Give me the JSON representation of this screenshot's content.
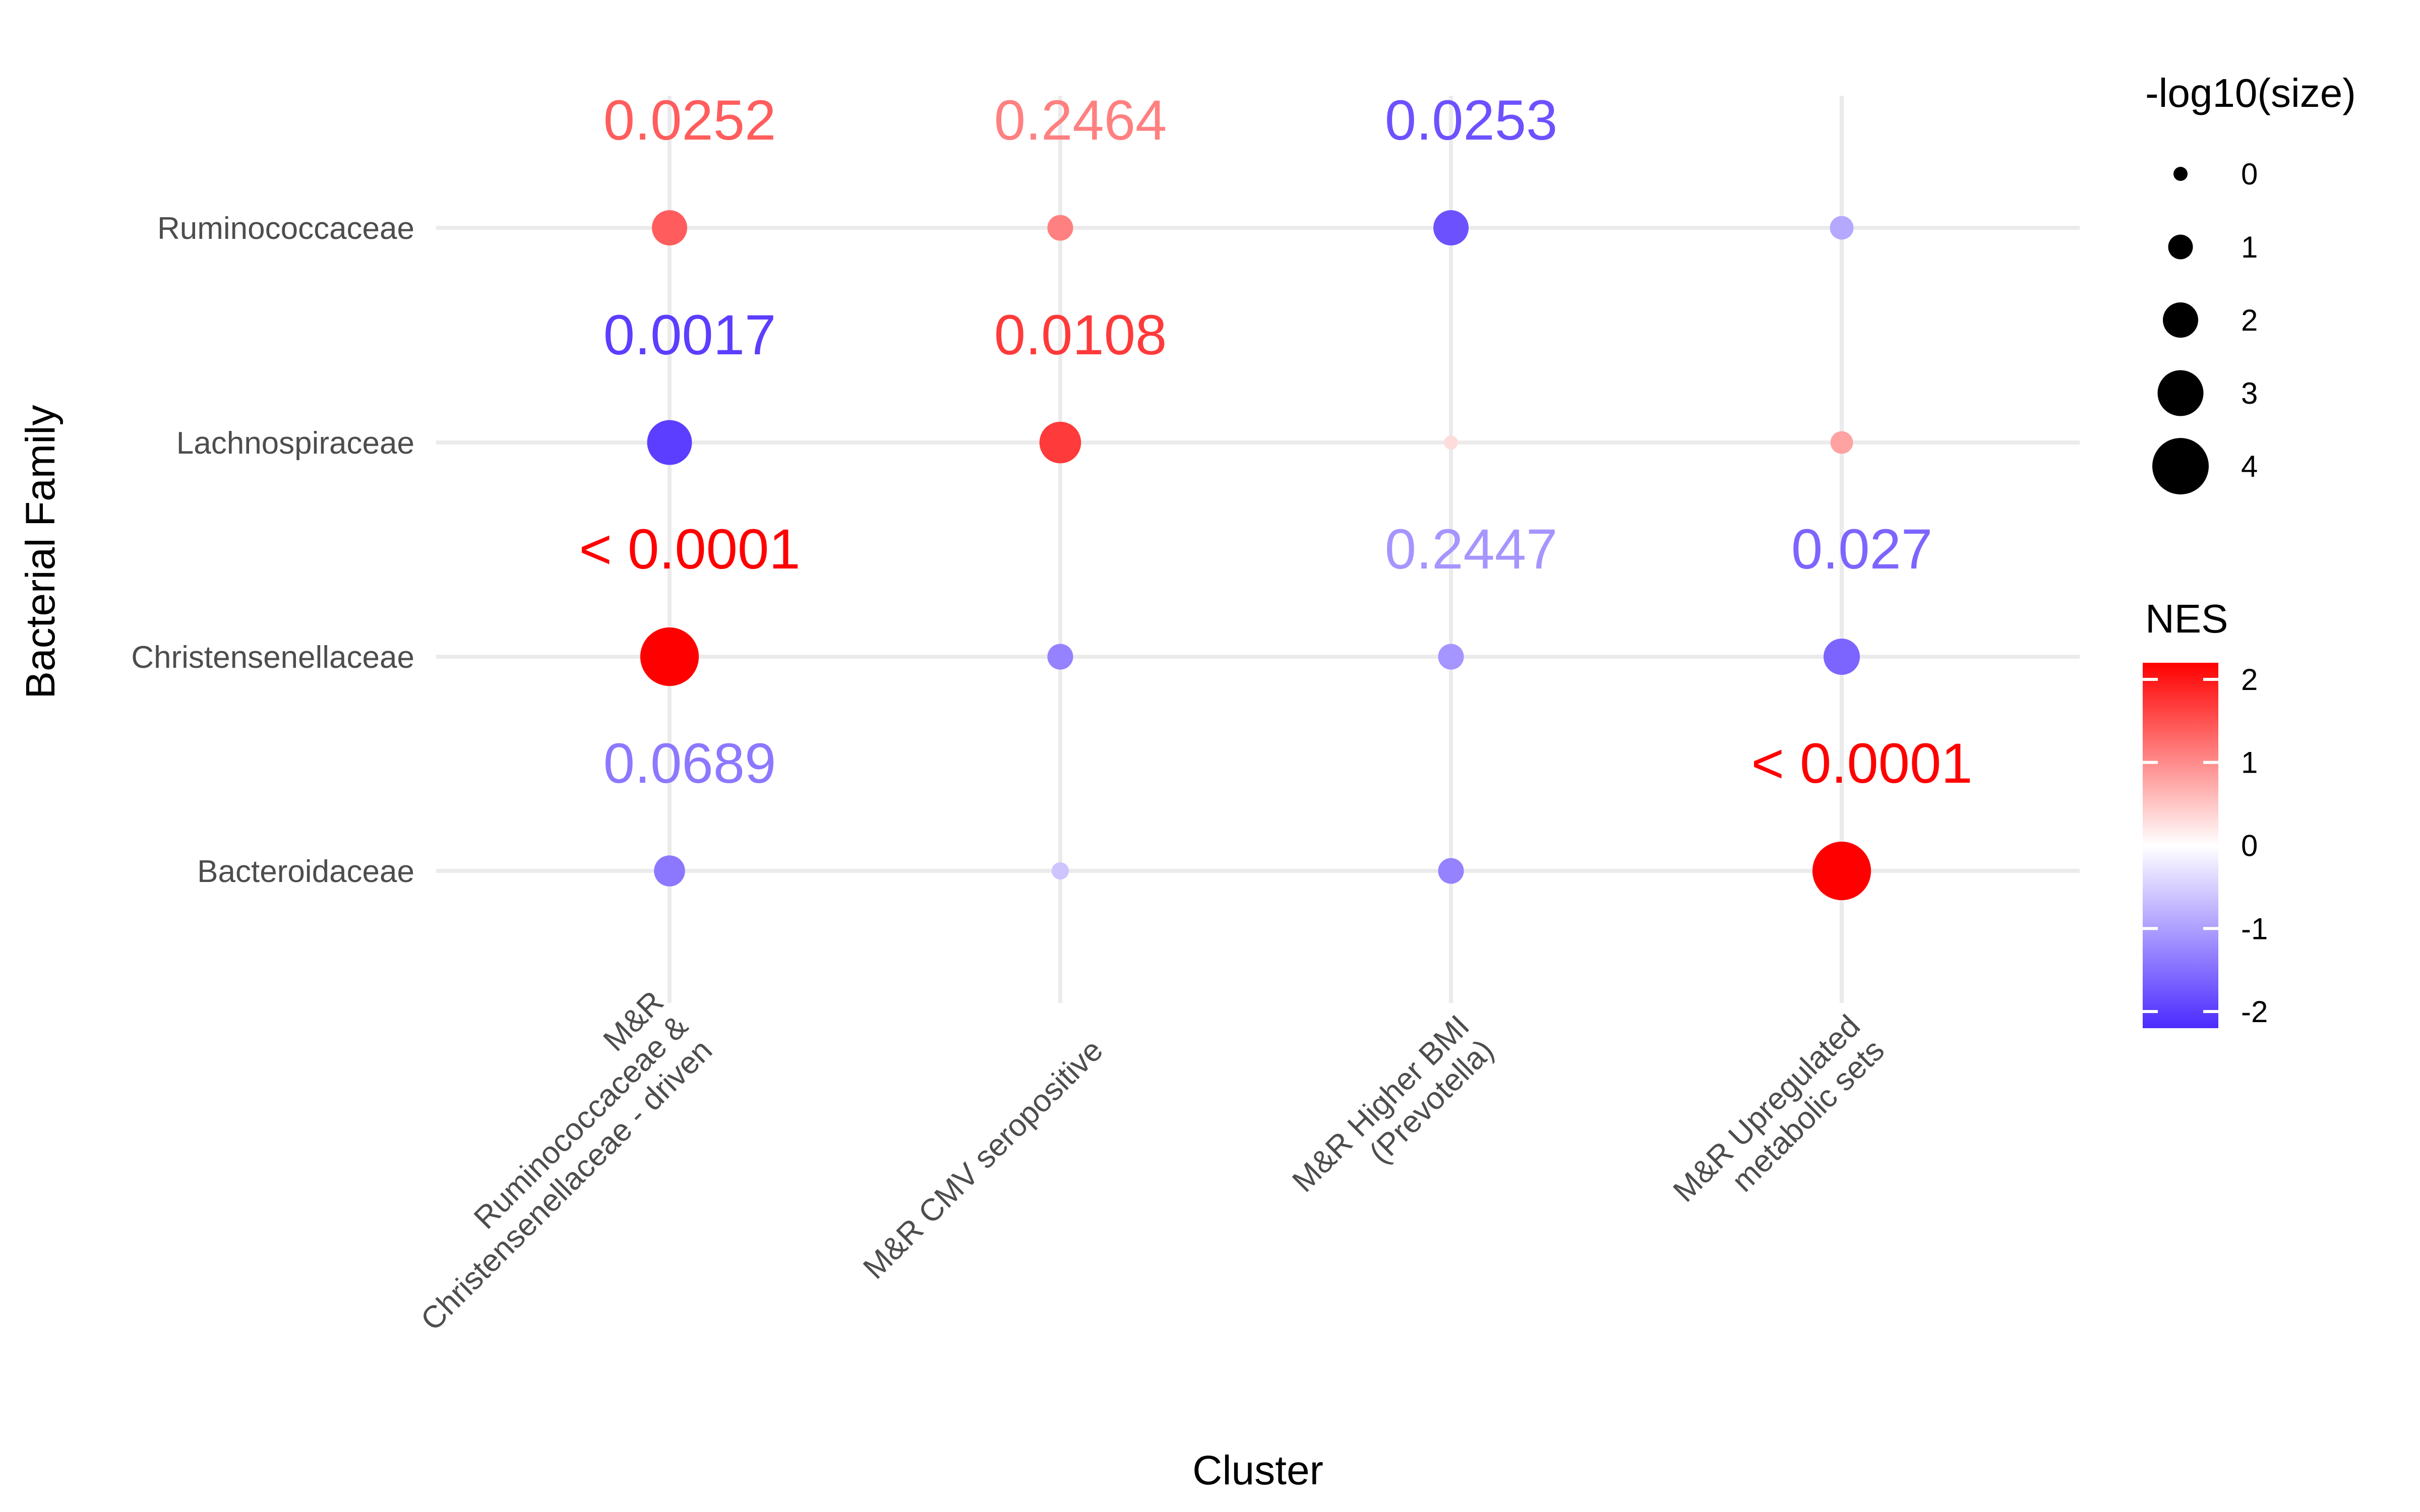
{
  "chart_data": {
    "type": "scatter",
    "xlabel": "Cluster",
    "ylabel": "Bacterial Family",
    "x_categories": [
      [
        "M&R",
        "Ruminococcaceae &",
        "Christensenellaceae - driven"
      ],
      [
        "M&R CMV seropositive"
      ],
      [
        "M&R Higher BMI",
        "(Prevotella)"
      ],
      [
        "M&R Upregulated",
        "metabolic sets"
      ]
    ],
    "y_categories": [
      "Ruminococcaceae",
      "Lachnospiraceae",
      "Christensenellaceae",
      "Bacteroidaceae"
    ],
    "points": [
      {
        "x": 0,
        "y": "Ruminococcaceae",
        "nes": 1.4,
        "size": 2.0,
        "label": "0.0252"
      },
      {
        "x": 1,
        "y": "Ruminococcaceae",
        "nes": 1.1,
        "size": 1.1,
        "label": "0.2464"
      },
      {
        "x": 2,
        "y": "Ruminococcaceae",
        "nes": -1.8,
        "size": 2.0,
        "label": "0.0253"
      },
      {
        "x": 3,
        "y": "Ruminococcaceae",
        "nes": -0.9,
        "size": 0.9,
        "label": ""
      },
      {
        "x": 0,
        "y": "Lachnospiraceae",
        "nes": -2.0,
        "size": 2.9,
        "label": "0.0017"
      },
      {
        "x": 1,
        "y": "Lachnospiraceae",
        "nes": 1.7,
        "size": 2.6,
        "label": "0.0108"
      },
      {
        "x": 2,
        "y": "Lachnospiraceae",
        "nes": 0.3,
        "size": 0.0,
        "label": ""
      },
      {
        "x": 3,
        "y": "Lachnospiraceae",
        "nes": 0.8,
        "size": 0.8,
        "label": ""
      },
      {
        "x": 0,
        "y": "Christensenellaceae",
        "nes": 2.2,
        "size": 4.2,
        "label": "< 0.0001"
      },
      {
        "x": 1,
        "y": "Christensenellaceae",
        "nes": -1.3,
        "size": 1.1,
        "label": ""
      },
      {
        "x": 2,
        "y": "Christensenellaceae",
        "nes": -1.1,
        "size": 1.1,
        "label": "0.2447"
      },
      {
        "x": 3,
        "y": "Christensenellaceae",
        "nes": -1.6,
        "size": 2.1,
        "label": "0.027"
      },
      {
        "x": 0,
        "y": "Bacteroidaceae",
        "nes": -1.4,
        "size": 1.6,
        "label": "0.0689"
      },
      {
        "x": 1,
        "y": "Bacteroidaceae",
        "nes": -0.6,
        "size": 0.3,
        "label": ""
      },
      {
        "x": 2,
        "y": "Bacteroidaceae",
        "nes": -1.3,
        "size": 1.1,
        "label": ""
      },
      {
        "x": 3,
        "y": "Bacteroidaceae",
        "nes": 2.2,
        "size": 4.2,
        "label": "< 0.0001"
      }
    ],
    "legend_size": {
      "title": "-log10(size)",
      "values": [
        0,
        1,
        2,
        3,
        4
      ]
    },
    "legend_color": {
      "title": "NES",
      "range": [
        -2.2,
        2.2
      ],
      "ticks": [
        2,
        1,
        0,
        -1,
        -2
      ],
      "tick_labels": [
        "2",
        "1",
        "0",
        "-1",
        "-2"
      ],
      "colors": {
        "low": "#4b2bff",
        "mid": "#ffffff",
        "high": "#ff0000"
      }
    },
    "grid": true,
    "legend_position": "right"
  }
}
